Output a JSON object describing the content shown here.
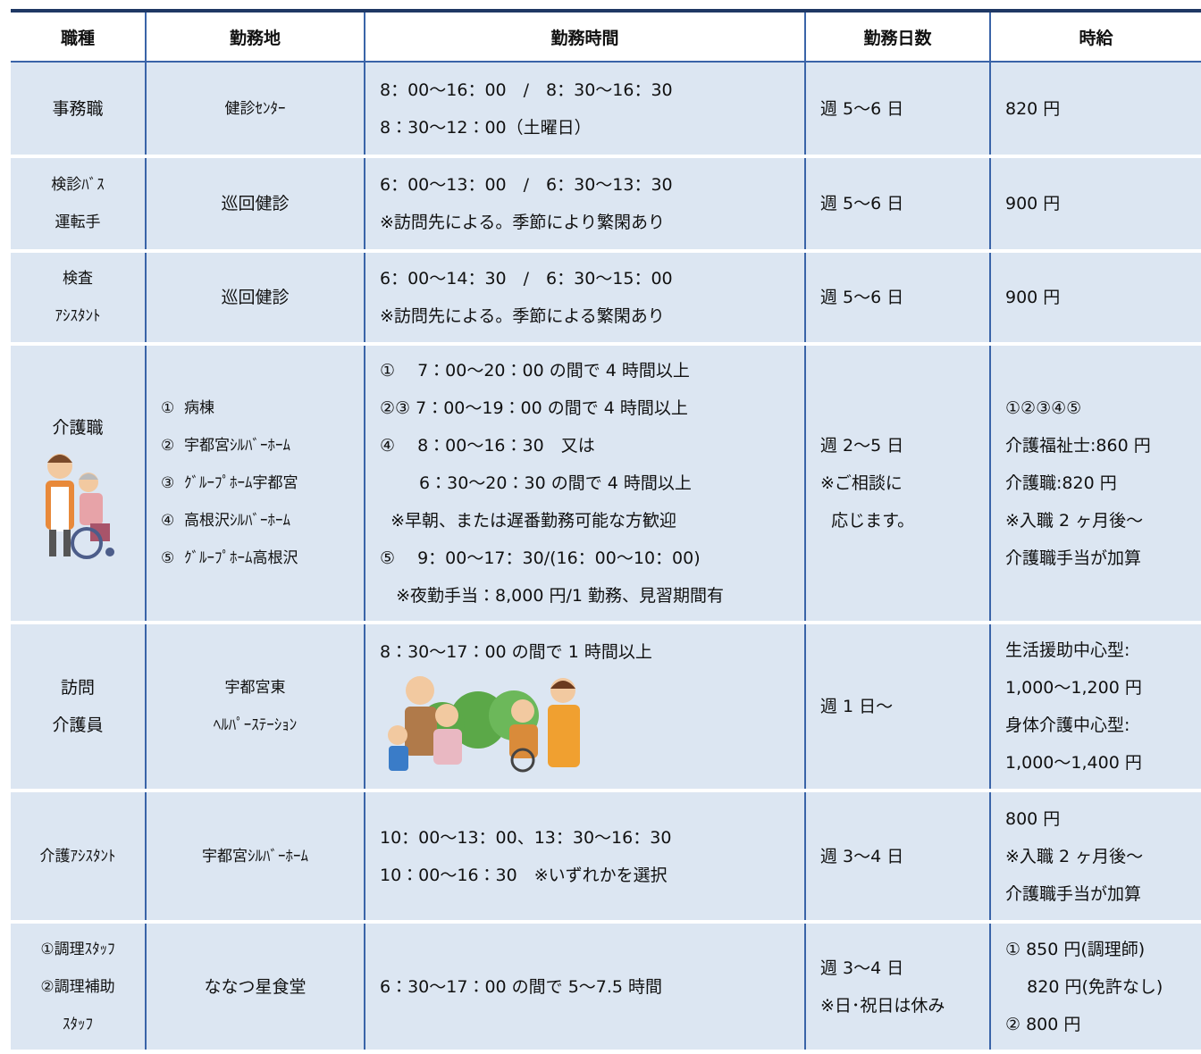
{
  "table": {
    "headers": [
      "職種",
      "勤務地",
      "勤務時間",
      "勤務日数",
      "時給"
    ],
    "rows": [
      [
        [
          "事務職"
        ],
        [
          "健診ｾﾝﾀｰ"
        ],
        [
          "8：00～16：00　/　8：30～16：30",
          "8：30～12：00（土曜日）"
        ],
        [
          "週 5～6 日"
        ],
        [
          "820 円"
        ]
      ],
      [
        [
          "検診ﾊﾞｽ",
          "運転手"
        ],
        [
          "巡回健診"
        ],
        [
          "6：00～13：00　/　6：30～13：30",
          "※訪問先による。季節により繁閑あり"
        ],
        [
          "週 5～6 日"
        ],
        [
          "900 円"
        ]
      ],
      [
        [
          "検査",
          "ｱｼｽﾀﾝﾄ"
        ],
        [
          "巡回健診"
        ],
        [
          "6：00～14：30　/　6：30～15：00",
          "※訪問先による。季節による繁閑あり"
        ],
        [
          "週 5～6 日"
        ],
        [
          "900 円"
        ]
      ],
      [
        [
          "介護職"
        ],
        [
          "①  病棟",
          "②  宇都宮ｼﾙﾊﾞｰﾎｰﾑ",
          "③  ｸﾞﾙｰﾌﾟﾎｰﾑ宇都宮",
          "④  高根沢ｼﾙﾊﾞｰﾎｰﾑ",
          "⑤  ｸﾞﾙｰﾌﾟﾎｰﾑ高根沢"
        ],
        [
          "①　 7：00～20：00 の間で 4 時間以上",
          "②③ 7：00～19：00 の間で 4 時間以上",
          "④　 8：00～16：30　又は",
          "　　 6：30～20：30 の間で 4 時間以上",
          "  ※早朝、または遅番勤務可能な方歓迎",
          "⑤　 9：00～17：30/(16：00～10：00)",
          "   ※夜勤手当：8,000 円/1 勤務、見習期間有"
        ],
        [
          "週 2～5 日",
          "※ご相談に",
          "  応じます。"
        ],
        [
          "①②③④⑤",
          "介護福祉士:860 円",
          "介護職:820 円",
          "※入職 2 ヶ月後～",
          "介護職手当が加算"
        ]
      ],
      [
        [
          "訪問",
          "介護員"
        ],
        [
          "宇都宮東",
          "ﾍﾙﾊﾟｰｽﾃｰｼｮﾝ"
        ],
        [
          "8：30～17：00 の間で 1 時間以上"
        ],
        [
          "週 1 日～"
        ],
        [
          "生活援助中心型:",
          "1,000～1,200 円",
          "身体介護中心型:",
          "1,000～1,400 円"
        ]
      ],
      [
        [
          "介護ｱｼｽﾀﾝﾄ"
        ],
        [
          "宇都宮ｼﾙﾊﾞｰﾎｰﾑ"
        ],
        [
          "10：00～13：00、13：30～16：30",
          "10：00～16：30　※いずれかを選択"
        ],
        [
          "週 3～4 日"
        ],
        [
          "800 円",
          "※入職 2 ヶ月後～",
          "介護職手当が加算"
        ]
      ],
      [
        [
          "①調理ｽﾀｯﾌ",
          "②調理補助",
          "ｽﾀｯﾌ"
        ],
        [
          "ななつ星食堂"
        ],
        [
          "6：30～17：00 の間で 5～7.5 時間"
        ],
        [
          "週 3～4 日",
          "※日･祝日は休み"
        ],
        [
          "① 850 円(調理師)",
          "    820 円(免許なし)",
          "② 800 円"
        ]
      ]
    ]
  }
}
